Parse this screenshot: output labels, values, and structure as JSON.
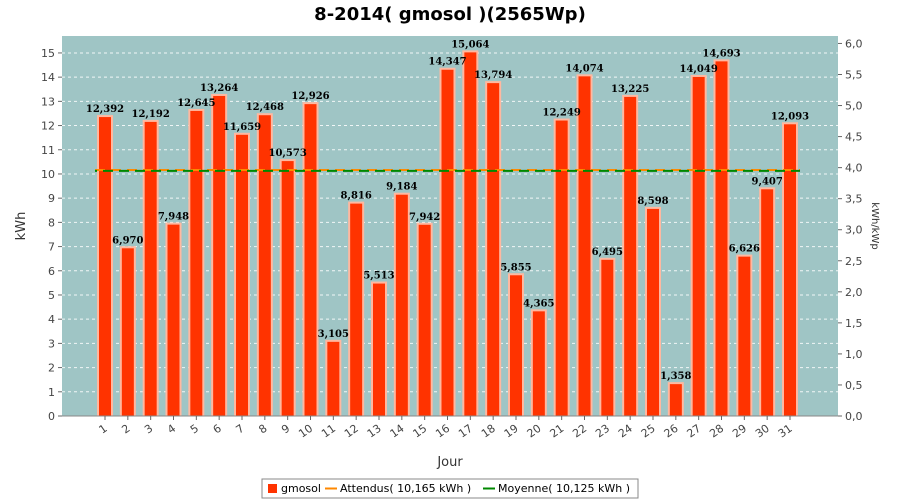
{
  "chart_data": {
    "type": "bar",
    "title": "8-2014( gmosol )(2565Wp)",
    "xlabel": "Jour",
    "ylabel": "kWh",
    "y2label": "kWh/kWp",
    "ylim": [
      0,
      15.7
    ],
    "y2lim": [
      0,
      6.12
    ],
    "y_ticks": [
      "0",
      "1",
      "2",
      "3",
      "4",
      "5",
      "6",
      "7",
      "8",
      "9",
      "10",
      "11",
      "12",
      "13",
      "14",
      "15"
    ],
    "y2_ticks": [
      "0,0",
      "0,5",
      "1,0",
      "1,5",
      "2,0",
      "2,5",
      "3,0",
      "3,5",
      "4,0",
      "4,5",
      "5,0",
      "5,5",
      "6,0"
    ],
    "categories": [
      "1",
      "2",
      "3",
      "4",
      "5",
      "6",
      "7",
      "8",
      "9",
      "10",
      "11",
      "12",
      "13",
      "14",
      "15",
      "16",
      "17",
      "18",
      "19",
      "20",
      "21",
      "22",
      "23",
      "24",
      "25",
      "26",
      "27",
      "28",
      "29",
      "30",
      "31"
    ],
    "series": [
      {
        "name": "gmosol",
        "values": [
          12.392,
          6.97,
          12.192,
          7.948,
          12.645,
          13.264,
          11.659,
          12.468,
          10.573,
          12.926,
          3.105,
          8.816,
          5.513,
          9.184,
          7.942,
          14.347,
          15.064,
          13.794,
          5.855,
          4.365,
          12.249,
          14.074,
          6.495,
          13.225,
          8.598,
          1.358,
          14.049,
          14.693,
          6.626,
          9.407,
          12.093
        ],
        "labels": [
          "12,392",
          "6,970",
          "12,192",
          "7,948",
          "12,645",
          "13,264",
          "11,659",
          "12,468",
          "10,573",
          "12,926",
          "3,105",
          "8,816",
          "5,513",
          "9,184",
          "7,942",
          "14,347",
          "15,064",
          "13,794",
          "5,855",
          "4,365",
          "12,249",
          "14,074",
          "6,495",
          "13,225",
          "8,598",
          "1,358",
          "14,049",
          "14,693",
          "6,626",
          "9,407",
          "12,093"
        ]
      }
    ],
    "reference_lines": [
      {
        "name": "Attendus( 10,165 kWh )",
        "value": 10.165
      },
      {
        "name": "Moyenne( 10,125 kWh )",
        "value": 10.125
      }
    ],
    "grid": true
  },
  "colors": {
    "plot_background": "#9fc5c5",
    "bar_fill": "#ff3300",
    "bar_edge": "#ffb8a0",
    "attendus_line": "#ff8800",
    "moyenne_line": "#008800",
    "grid": "#ffffff"
  }
}
